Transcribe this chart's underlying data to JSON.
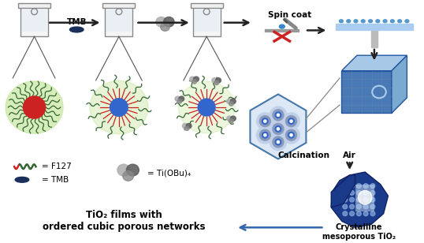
{
  "bg_color": "#ffffff",
  "title_text": "TiO₂ films with\nordered cubic porous networks",
  "title_fontsize": 8.5,
  "arrow_color": "#222222",
  "tmb_label": "TMB",
  "spin_coat_label": "Spin coat",
  "calcination_label": "Calcination",
  "air_label": "Air",
  "f127_label": "= F127",
  "tmb_legend_label": "= TMB",
  "tiOBu_label": "= Ti(OBu)₄",
  "crystalline_label": "Crystalline\nmesoporous TiO₂",
  "micelle_green_bg": "#c8e6a0",
  "micelle_core_red": "#cc2222",
  "micelle_core_blue": "#3366cc",
  "tmb_molecule_color": "#1a2f5a",
  "wavy_green": "#336633",
  "wavy_red": "#cc2222",
  "crystal_blue1": "#4a7ab5",
  "crystal_blue2": "#7aaad0",
  "crystal_blue3": "#a8c8e8",
  "crystal_dark": "#2255a0",
  "porous_crystal_dark": "#1a3a8a",
  "porous_crystal_mid": "#3366bb",
  "porous_crystal_light": "#88aadd",
  "hex_bg": "#dce8f5",
  "hex_edge": "#4477aa",
  "tiOBu_gray1": "#b0b0b0",
  "tiOBu_gray2": "#606060",
  "film_substrate_gray": "#c0c0c0",
  "film_blue_top": "#88bbdd",
  "spin_substrate_gray": "#aaaaaa",
  "spin_red": "#cc2222"
}
